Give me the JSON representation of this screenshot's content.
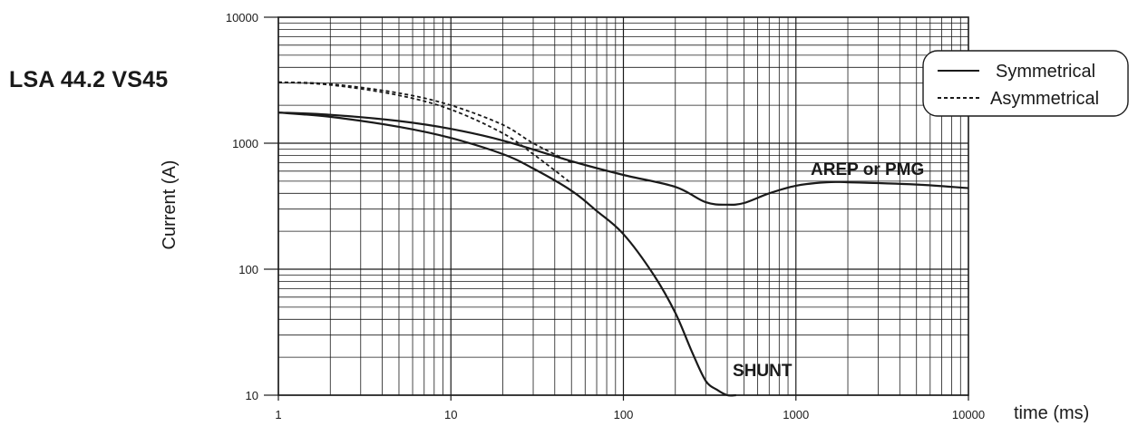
{
  "chart_data": {
    "type": "line",
    "title": "LSA 44.2 VS45",
    "xlabel": "time (ms)",
    "ylabel": "Current (A)",
    "x_scale": "log",
    "y_scale": "log",
    "xlim": [
      1,
      10000
    ],
    "ylim": [
      10,
      10000
    ],
    "grid": true,
    "x_ticks": [
      1,
      10,
      100,
      1000,
      10000
    ],
    "x_tick_labels": [
      "1",
      "10",
      "100",
      "1000",
      "10000"
    ],
    "y_ticks": [
      10,
      100,
      1000,
      10000
    ],
    "y_tick_labels": [
      "10",
      "100",
      "1000",
      "10000"
    ],
    "legend": {
      "position": "top-right",
      "entries": [
        {
          "label": "Symmetrical",
          "style": "solid"
        },
        {
          "label": "Asymmetrical",
          "style": "dashed"
        }
      ]
    },
    "annotations": [
      {
        "text": "AREP or PMG"
      },
      {
        "text": "SHUNT"
      }
    ],
    "series": [
      {
        "style": "solid",
        "group": "AREP or PMG",
        "x": [
          1,
          2,
          5,
          10,
          20,
          50,
          100,
          200,
          300,
          400,
          500,
          700,
          1000,
          1500,
          2000,
          5000,
          10000
        ],
        "y": [
          1750,
          1680,
          1500,
          1300,
          1050,
          720,
          560,
          450,
          340,
          325,
          335,
          400,
          460,
          490,
          490,
          470,
          440
        ]
      },
      {
        "style": "solid",
        "group": "SHUNT",
        "x": [
          1,
          2,
          5,
          10,
          20,
          30,
          50,
          70,
          100,
          150,
          200,
          250,
          300,
          350,
          400,
          450
        ],
        "y": [
          1750,
          1620,
          1350,
          1100,
          820,
          630,
          420,
          290,
          190,
          90,
          45,
          22,
          13,
          11,
          10,
          10
        ]
      },
      {
        "style": "dashed",
        "group": "AREP or PMG",
        "x": [
          1,
          2,
          5,
          10,
          20,
          30,
          50
        ],
        "y": [
          3050,
          2950,
          2500,
          2000,
          1400,
          1000,
          700
        ]
      },
      {
        "style": "dashed",
        "group": "SHUNT",
        "x": [
          1,
          2,
          5,
          10,
          20,
          30,
          50
        ],
        "y": [
          3050,
          2900,
          2400,
          1850,
          1200,
          820,
          480
        ]
      }
    ]
  }
}
